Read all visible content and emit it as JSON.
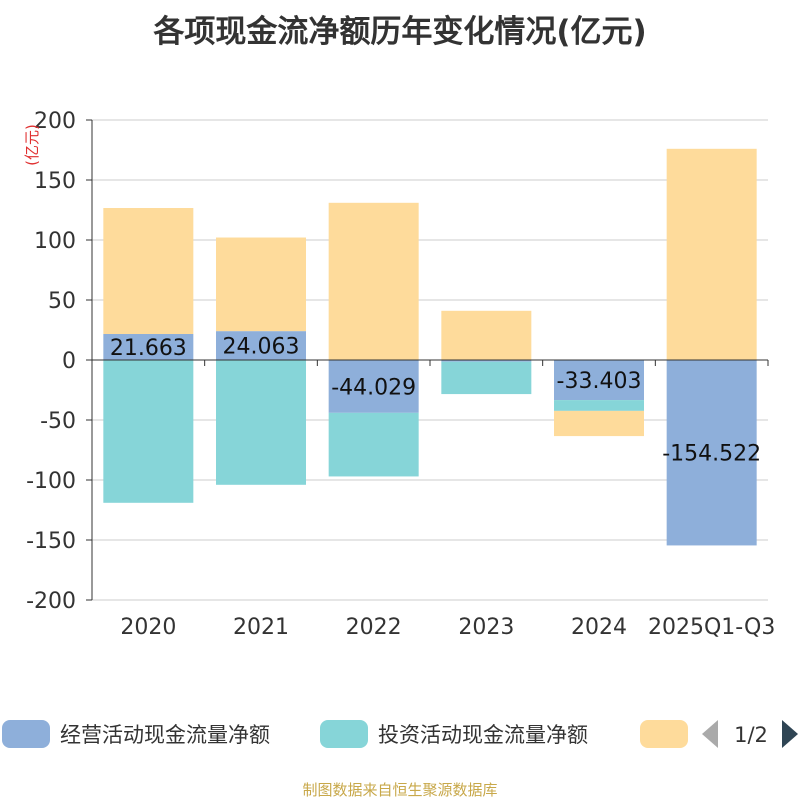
{
  "title": "各项现金流净额历年变化情况(亿元)",
  "source": "制图数据来自恒生聚源数据库",
  "colors": {
    "operating": "#8eafda",
    "investing": "#86d5d8",
    "financing": "#fedb9b",
    "axis": "#333333",
    "grid": "#cccccc",
    "unit": "#e03030"
  },
  "legend": {
    "items": [
      "经营活动现金流量净额",
      "投资活动现金流量净额",
      ""
    ],
    "page": "1/2"
  },
  "chart_data": {
    "type": "bar",
    "stacked": true,
    "y_unit": "(亿元)",
    "ylim": [
      -200,
      200
    ],
    "yticks": [
      200,
      150,
      100,
      50,
      0,
      -50,
      -100,
      -150,
      -200
    ],
    "categories": [
      "2020",
      "2021",
      "2022",
      "2023",
      "2024",
      "2025Q1-Q3"
    ],
    "grid": true,
    "legend_position": "bottom",
    "series": [
      {
        "name": "经营活动现金流量净额",
        "values": [
          21.663,
          24.063,
          -44.029,
          -1.4,
          -33.403,
          -154.522
        ],
        "labels": [
          "21.663",
          "24.063",
          "-44.029",
          "",
          "-33.403",
          "-154.522"
        ]
      },
      {
        "name": "投资活动现金流量净额",
        "values": [
          -119,
          -104,
          -53,
          -27,
          -9,
          0
        ]
      },
      {
        "values": [
          105,
          78,
          131,
          41,
          -21,
          176
        ]
      }
    ]
  }
}
